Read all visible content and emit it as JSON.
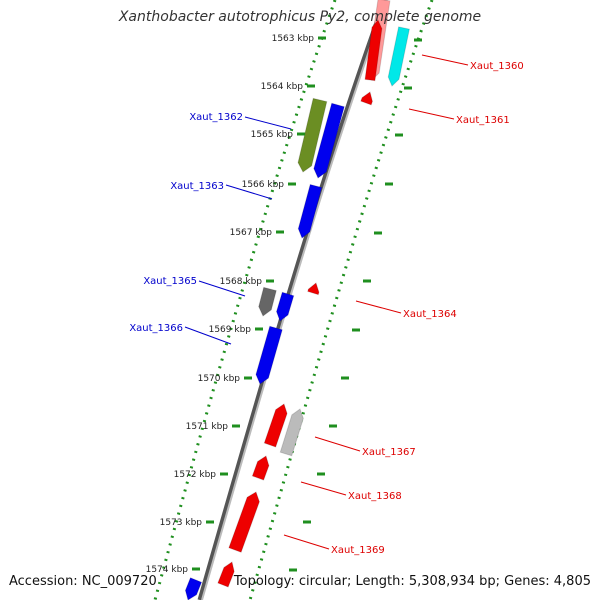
{
  "title": "Xanthobacter autotrophicus Py2, complete genome",
  "footer": {
    "accession": "Accession: NC_009720",
    "info": "Topology: circular; Length: 5,308,934 bp; Genes: 4,805"
  },
  "ticks": [
    {
      "label": "1563 kbp"
    },
    {
      "label": "1564 kbp"
    },
    {
      "label": "1565 kbp"
    },
    {
      "label": "1566 kbp"
    },
    {
      "label": "1567 kbp"
    },
    {
      "label": "1568 kbp"
    },
    {
      "label": "1569 kbp"
    },
    {
      "label": "1570 kbp"
    },
    {
      "label": "1571 kbp"
    },
    {
      "label": "1572 kbp"
    },
    {
      "label": "1573 kbp"
    },
    {
      "label": "1574 kbp"
    }
  ],
  "gene_labels": [
    {
      "name": "Xaut_1360",
      "color": "#dd0000"
    },
    {
      "name": "Xaut_1361",
      "color": "#dd0000"
    },
    {
      "name": "Xaut_1362",
      "color": "#0000cc"
    },
    {
      "name": "Xaut_1363",
      "color": "#0000cc"
    },
    {
      "name": "Xaut_1364",
      "color": "#dd0000"
    },
    {
      "name": "Xaut_1365",
      "color": "#0000cc"
    },
    {
      "name": "Xaut_1366",
      "color": "#0000cc"
    },
    {
      "name": "Xaut_1367",
      "color": "#dd0000"
    },
    {
      "name": "Xaut_1368",
      "color": "#dd0000"
    },
    {
      "name": "Xaut_1369",
      "color": "#dd0000"
    }
  ],
  "colors": {
    "forward_gene": "#0000ee",
    "reverse_gene": "#ee0000",
    "trna": "#00e8e8",
    "pseudo": "#bbbbbb",
    "rrna": "#6b8e23",
    "other": "#666666",
    "backbone": "#888888",
    "tick_track": "#1f8f1f"
  }
}
